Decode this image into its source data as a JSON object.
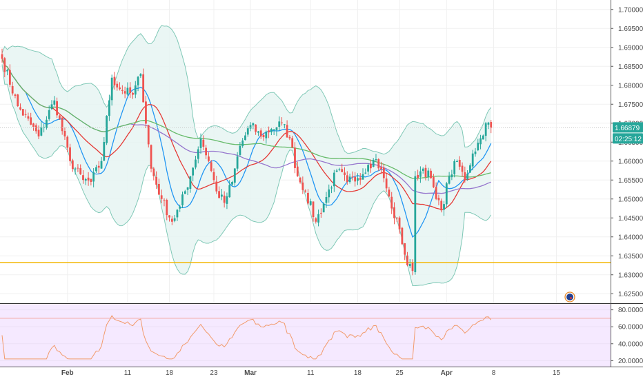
{
  "chart_data": [
    {
      "type": "candlestick",
      "title": "",
      "ylim": [
        1.6225,
        1.7025
      ],
      "y_ticks": [
        "1.70000",
        "1.69500",
        "1.69000",
        "1.68500",
        "1.68000",
        "1.67500",
        "1.67000",
        "1.66500",
        "1.66000",
        "1.65500",
        "1.65000",
        "1.64500",
        "1.64000",
        "1.63500",
        "1.63000",
        "1.62500"
      ],
      "x_ticks": [
        "Feb",
        "11",
        "18",
        "23",
        "Mar",
        "11",
        "18",
        "25",
        "Apr",
        "8",
        "15"
      ],
      "current_price": "1.66879",
      "countdown": "02:25:12",
      "horizontal_line": 1.6332,
      "colors": {
        "up": "#26a69a",
        "down": "#ef5350",
        "bands_fill": "#e6f5f2",
        "bands_line": "#7fc8b6",
        "ma_blue": "#2196f3",
        "ma_red": "#e53935",
        "ma_purple": "#9575cd",
        "ma_green": "#66bb6a",
        "level": "#f2b600",
        "price_badge": "#26a69a"
      },
      "anchors": [
        {
          "i": 0,
          "p": 1.687
        },
        {
          "i": 6,
          "p": 1.6745
        },
        {
          "i": 14,
          "p": 1.6665
        },
        {
          "i": 20,
          "p": 1.676
        },
        {
          "i": 26,
          "p": 1.66
        },
        {
          "i": 31,
          "p": 1.655
        },
        {
          "i": 34,
          "p": 1.6545
        },
        {
          "i": 38,
          "p": 1.66
        },
        {
          "i": 42,
          "p": 1.682
        },
        {
          "i": 45,
          "p": 1.679
        },
        {
          "i": 50,
          "p": 1.6775
        },
        {
          "i": 53,
          "p": 1.683
        },
        {
          "i": 57,
          "p": 1.658
        },
        {
          "i": 61,
          "p": 1.65
        },
        {
          "i": 65,
          "p": 1.644
        },
        {
          "i": 68,
          "p": 1.648
        },
        {
          "i": 72,
          "p": 1.656
        },
        {
          "i": 76,
          "p": 1.666
        },
        {
          "i": 79,
          "p": 1.66
        },
        {
          "i": 82,
          "p": 1.652
        },
        {
          "i": 85,
          "p": 1.649
        },
        {
          "i": 88,
          "p": 1.6545
        },
        {
          "i": 91,
          "p": 1.664
        },
        {
          "i": 95,
          "p": 1.6695
        },
        {
          "i": 99,
          "p": 1.6665
        },
        {
          "i": 103,
          "p": 1.6685
        },
        {
          "i": 107,
          "p": 1.67
        },
        {
          "i": 110,
          "p": 1.666
        },
        {
          "i": 113,
          "p": 1.656
        },
        {
          "i": 116,
          "p": 1.652
        },
        {
          "i": 120,
          "p": 1.644
        },
        {
          "i": 124,
          "p": 1.6505
        },
        {
          "i": 128,
          "p": 1.6575
        },
        {
          "i": 132,
          "p": 1.6545
        },
        {
          "i": 136,
          "p": 1.6555
        },
        {
          "i": 140,
          "p": 1.659
        },
        {
          "i": 143,
          "p": 1.6605
        },
        {
          "i": 146,
          "p": 1.6555
        },
        {
          "i": 149,
          "p": 1.6475
        },
        {
          "i": 152,
          "p": 1.642
        },
        {
          "i": 155,
          "p": 1.6325
        },
        {
          "i": 157,
          "p": 1.631
        },
        {
          "i": 158,
          "p": 1.656
        },
        {
          "i": 161,
          "p": 1.658
        },
        {
          "i": 164,
          "p": 1.6555
        },
        {
          "i": 166,
          "p": 1.65
        },
        {
          "i": 168,
          "p": 1.647
        },
        {
          "i": 171,
          "p": 1.656
        },
        {
          "i": 174,
          "p": 1.66
        },
        {
          "i": 177,
          "p": 1.655
        },
        {
          "i": 180,
          "p": 1.662
        },
        {
          "i": 183,
          "p": 1.666
        },
        {
          "i": 185,
          "p": 1.67
        },
        {
          "i": 187,
          "p": 1.6688
        }
      ],
      "x_tick_index": [
        25,
        48,
        64,
        81,
        95,
        118,
        136,
        152,
        170,
        188,
        212
      ],
      "moving_average_periods": [
        10,
        20,
        50,
        100
      ],
      "bollinger": {
        "period": 20,
        "stddev": 2
      }
    },
    {
      "type": "line",
      "name": "rsi",
      "ylim": [
        13,
        87
      ],
      "y_ticks": [
        "80.0000",
        "60.0000",
        "40.0000",
        "20.0000"
      ],
      "overbought": 70
    }
  ]
}
